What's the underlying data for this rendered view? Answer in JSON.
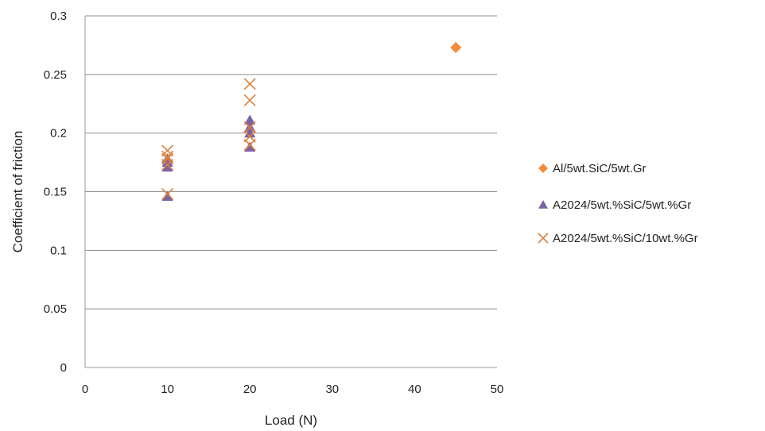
{
  "chart_data": {
    "type": "scatter",
    "title": "",
    "xlabel": "Load (N)",
    "ylabel": "Coefficient of friction",
    "xlim": [
      0,
      50
    ],
    "ylim": [
      0,
      0.3
    ],
    "x_ticks": [
      "0",
      "10",
      "20",
      "30",
      "40",
      "50"
    ],
    "y_ticks": [
      "0",
      "0.05",
      "0.1",
      "0.15",
      "0.2",
      "0.25",
      "0.3"
    ],
    "grid": "horizontal",
    "legend_position": "right",
    "series": [
      {
        "name": "Al/5wt.SiC/5wt.Gr",
        "marker": "diamond",
        "color": "#F28C3C",
        "points": [
          [
            45,
            0.273
          ]
        ]
      },
      {
        "name": "A2024/5wt.%SiC/5wt.%Gr",
        "marker": "triangle",
        "color": "#7B62A3",
        "points": [
          [
            10,
            0.146
          ],
          [
            10,
            0.171
          ],
          [
            10,
            0.175
          ],
          [
            10,
            0.178
          ],
          [
            20,
            0.188
          ],
          [
            20,
            0.2
          ],
          [
            20,
            0.205
          ],
          [
            20,
            0.211
          ]
        ]
      },
      {
        "name": "A2024/5wt.%SiC/10wt.%Gr",
        "marker": "x",
        "color": "#D9823F",
        "points": [
          [
            10,
            0.148
          ],
          [
            10,
            0.173
          ],
          [
            10,
            0.178
          ],
          [
            10,
            0.18
          ],
          [
            10,
            0.185
          ],
          [
            20,
            0.19
          ],
          [
            20,
            0.197
          ],
          [
            20,
            0.205
          ],
          [
            20,
            0.228
          ],
          [
            20,
            0.242
          ]
        ]
      }
    ]
  }
}
